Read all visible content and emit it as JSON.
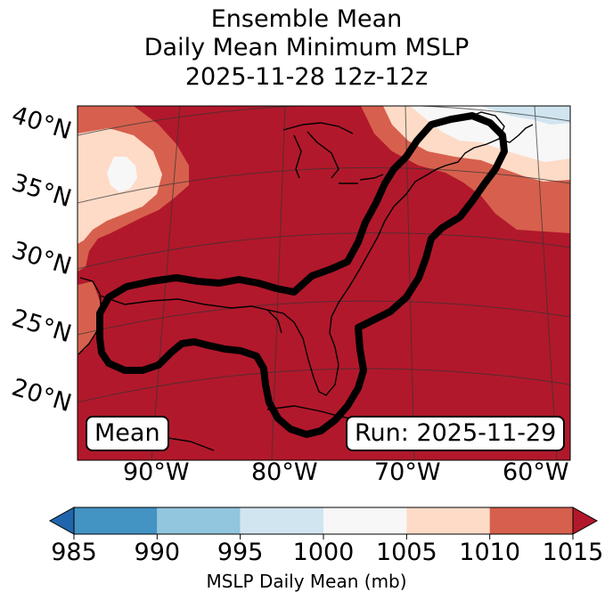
{
  "title": {
    "line1": "Ensemble Mean",
    "line2": "Daily Mean Minimum MSLP",
    "line3": "2025-11-28 12z-12z"
  },
  "labels": {
    "mean_box": "Mean",
    "run_box": "Run: 2025-11-29"
  },
  "latitude_labels": [
    "40°N",
    "35°N",
    "30°N",
    "25°N",
    "20°N"
  ],
  "longitude_labels": [
    "90°W",
    "80°W",
    "70°W",
    "60°W"
  ],
  "colorbar": {
    "title": "MSLP Daily Mean (mb)",
    "ticks": [
      "985",
      "990",
      "995",
      "1000",
      "1005",
      "1010",
      "1015"
    ],
    "colors": [
      "#2166ac",
      "#4393c3",
      "#92c5de",
      "#d1e5f0",
      "#f7f7f7",
      "#fddbc7",
      "#d6604d",
      "#b2182b"
    ],
    "extend": "both"
  },
  "contour_label": "1015 mb ensemble-mean outline",
  "dominant_field_color": "#b2182b"
}
